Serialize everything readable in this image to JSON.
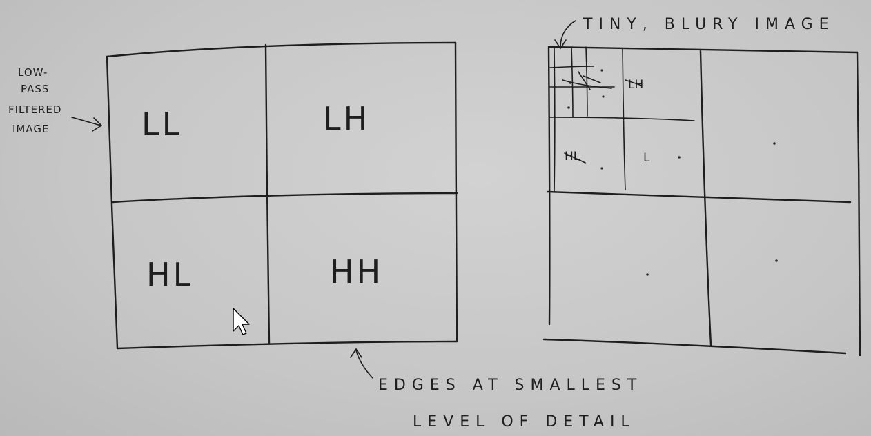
{
  "left_diagram": {
    "quadrants": {
      "ll": "LL",
      "lh": "LH",
      "hl": "HL",
      "hh": "HH"
    },
    "side_note": [
      "LOW-",
      "PASS",
      "FILTERED",
      "IMAGE"
    ]
  },
  "right_diagram": {
    "annotation": "TINY, BLURY IMAGE",
    "sub_labels": {
      "lh": "LH",
      "hl": "HL",
      "hh": "L"
    }
  },
  "bottom_annotation": {
    "line1": "EDGES AT SMALLEST",
    "line2": "LEVEL OF DETAIL"
  }
}
